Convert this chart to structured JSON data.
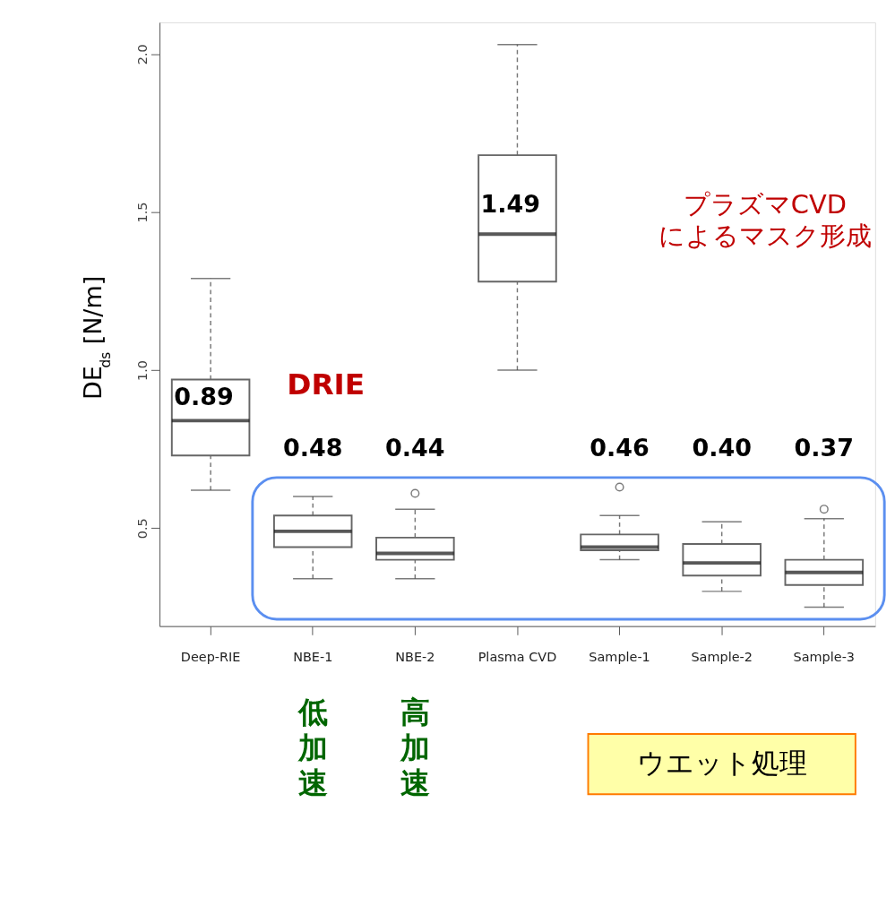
{
  "chart_data": {
    "type": "box",
    "ylabel": "DE$_{ds}$ [N/m]",
    "categories": [
      "Deep-RIE",
      "NBE-1",
      "NBE-2",
      "Plasma CVD",
      "Sample-1",
      "Sample-2",
      "Sample-3"
    ],
    "boxes": [
      {
        "low": 0.62,
        "q1": 0.73,
        "median": 0.84,
        "q3": 0.97,
        "high": 1.29
      },
      {
        "low": 0.34,
        "q1": 0.44,
        "median": 0.49,
        "q3": 0.54,
        "high": 0.6
      },
      {
        "low": 0.34,
        "q1": 0.4,
        "median": 0.42,
        "q3": 0.47,
        "high": 0.56,
        "outliers": [
          0.61
        ]
      },
      {
        "low": 1.0,
        "q1": 1.28,
        "median": 1.43,
        "q3": 1.68,
        "high": 2.03
      },
      {
        "low": 0.4,
        "q1": 0.43,
        "median": 0.44,
        "q3": 0.48,
        "high": 0.54,
        "outliers": [
          0.63
        ]
      },
      {
        "low": 0.3,
        "q1": 0.35,
        "median": 0.39,
        "q3": 0.45,
        "high": 0.52
      },
      {
        "low": 0.25,
        "q1": 0.32,
        "median": 0.36,
        "q3": 0.4,
        "high": 0.53,
        "outliers": [
          0.56
        ]
      }
    ],
    "ylim": [
      0.19,
      2.1
    ],
    "yticks": [
      0.5,
      {
        "value": 1,
        "label": "1.0"
      },
      1.5,
      {
        "value": 2,
        "label": "2.0"
      }
    ],
    "grid": false,
    "annotations": [
      "0.89",
      "1.49",
      "0.48",
      "0.44",
      "0.46",
      "0.40",
      "0.37",
      "DRIE",
      "プラズマCVD\nによるマスク形成",
      "低加速",
      "高加速",
      "ウエット処理"
    ]
  }
}
